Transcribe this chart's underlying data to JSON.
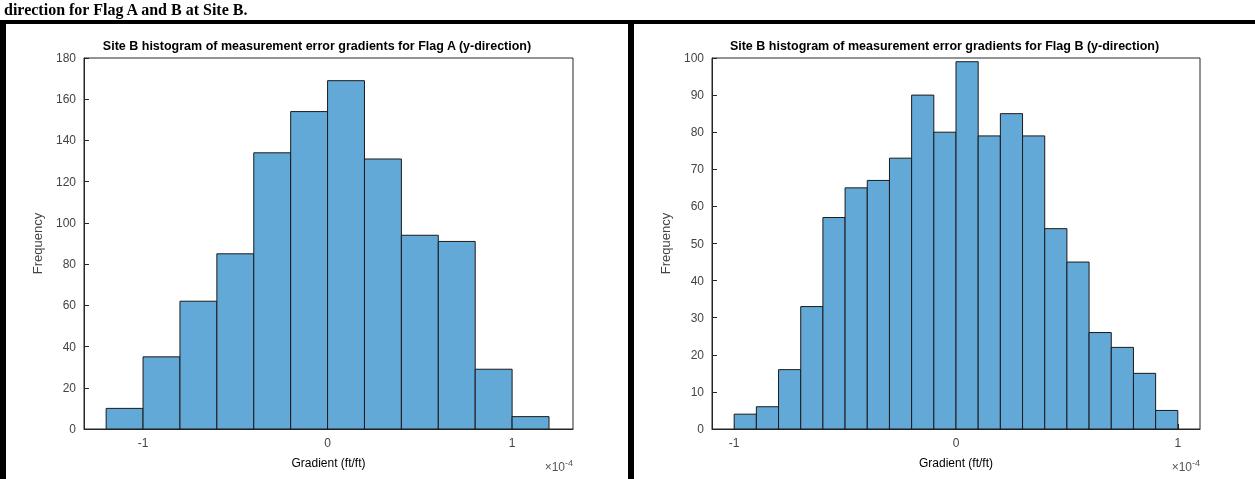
{
  "chart_data": [
    {
      "type": "histogram",
      "title": "Site B histogram of measurement error gradients for Flag A (y-direction)",
      "xlabel": "Gradient (ft/ft)",
      "ylabel": "Frequency",
      "bins": [
        -1.2,
        -1.0,
        -0.8,
        -0.6,
        -0.4,
        -0.2,
        0,
        0.2,
        0.4,
        0.6,
        0.8,
        1.0,
        1.2
      ],
      "values": [
        10,
        35,
        62,
        85,
        134,
        154,
        169,
        131,
        94,
        91,
        29,
        6
      ],
      "color": "#63a9d8",
      "xlim": [
        -1.32,
        1.33
      ],
      "xticks": [
        -1,
        0,
        1
      ],
      "ylim": [
        0,
        180
      ],
      "yticks": [
        0,
        20,
        40,
        60,
        80,
        100,
        120,
        140,
        160,
        180
      ],
      "grid": false,
      "annotations": [
        "direction for Flag A and B at Site B.",
        "×10$^{-4}$"
      ]
    },
    {
      "type": "histogram",
      "title": "Site B histogram of measurement error gradients for Flag B (y-direction)",
      "xlabel": "Gradient (ft/ft)",
      "ylabel": "Frequency",
      "bins": [
        -1.0,
        -0.9,
        -0.8,
        -0.7,
        -0.6,
        -0.5,
        -0.4,
        -0.3,
        -0.2,
        -0.1,
        0,
        0.1,
        0.2,
        0.3,
        0.4,
        0.5,
        0.6,
        0.7,
        0.8,
        0.9,
        1.0
      ],
      "values": [
        4,
        6,
        16,
        33,
        57,
        65,
        67,
        73,
        90,
        80,
        99,
        79,
        85,
        79,
        54,
        45,
        26,
        22,
        15,
        5
      ],
      "color": "#63a9d8",
      "xlim": [
        -1.1,
        1.1
      ],
      "xticks": [
        -1,
        0,
        1
      ],
      "ylim": [
        0,
        100
      ],
      "yticks": [
        0,
        10,
        20,
        30,
        40,
        50,
        60,
        70,
        80,
        90,
        100
      ],
      "grid": false,
      "annotations": [
        "×10$^{-4}$"
      ]
    }
  ]
}
